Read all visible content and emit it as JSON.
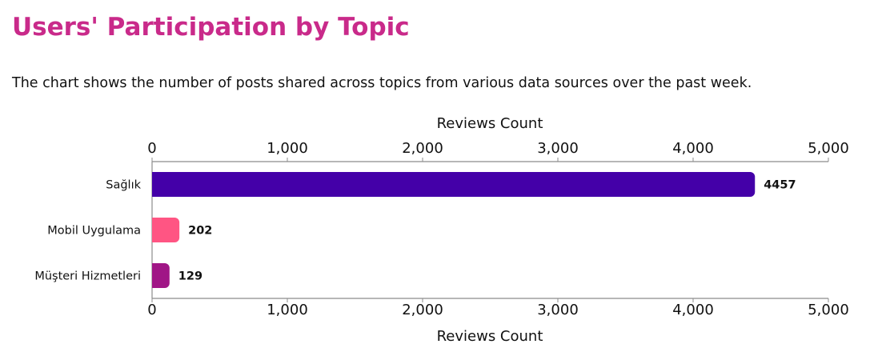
{
  "page": {
    "title": "Users' Participation by Topic",
    "subtitle": "The chart shows the number of posts shared across topics from various data sources over the past week."
  },
  "colors": {
    "title": "#c92a8a",
    "axis": "#8c8c8c"
  },
  "chart_data": {
    "type": "bar",
    "orientation": "horizontal",
    "categories": [
      "Sağlık",
      "Mobil Uygulama",
      "Müşteri Hizmetleri"
    ],
    "values": [
      4457,
      202,
      129
    ],
    "data_labels": [
      "4457",
      "202",
      "129"
    ],
    "bar_colors": [
      "#4400a8",
      "#ff5583",
      "#a01686"
    ],
    "xlabel": "Reviews Count",
    "xlim": [
      0,
      5000
    ],
    "xticks": [
      0,
      1000,
      2000,
      3000,
      4000,
      5000
    ],
    "xtick_labels": [
      "0",
      "1,000",
      "2,000",
      "3,000",
      "4,000",
      "5,000"
    ],
    "grid": false,
    "legend": "none"
  }
}
